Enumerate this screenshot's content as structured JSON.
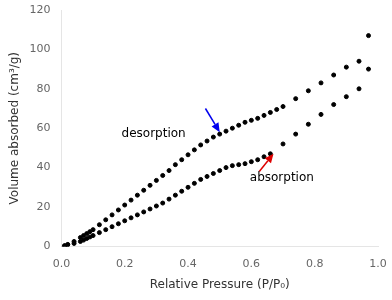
{
  "chart_data": {
    "type": "scatter",
    "x_label": "Relative Pressure (P/P₀)",
    "y_label": "Volume absorbed (cm³/g)",
    "xlim": [
      0.0,
      1.0
    ],
    "ylim": [
      0,
      120
    ],
    "xticks": [
      {
        "value": 0.0,
        "label": "0.0"
      },
      0.2,
      0.4,
      0.6,
      0.8,
      {
        "value": 1.0,
        "label": "1.0"
      }
    ],
    "yticks": [
      0,
      20,
      40,
      60,
      80,
      100,
      120
    ],
    "grid": false,
    "series": [
      {
        "color": "#000000",
        "x": [
          0.01,
          0.02,
          0.04,
          0.06,
          0.07,
          0.08,
          0.09,
          0.1,
          0.12,
          0.14,
          0.16,
          0.18,
          0.2,
          0.22,
          0.24,
          0.26,
          0.28,
          0.3,
          0.32,
          0.34,
          0.36,
          0.38,
          0.4,
          0.42,
          0.44,
          0.46,
          0.48,
          0.5,
          0.52,
          0.54,
          0.56,
          0.58,
          0.6,
          0.62,
          0.64,
          0.66,
          0.7,
          0.74,
          0.78,
          0.82,
          0.86,
          0.9,
          0.94,
          0.97
        ],
        "values": [
          0.3,
          0.8,
          1.5,
          2.5,
          3.2,
          4.0,
          4.8,
          5.5,
          7.0,
          8.5,
          10.0,
          11.5,
          13.0,
          14.5,
          16.0,
          17.5,
          19.0,
          20.5,
          22.0,
          24.0,
          26.0,
          28.0,
          30.0,
          32.0,
          34.0,
          35.5,
          37.0,
          38.5,
          40.0,
          41.0,
          41.5,
          42.0,
          43.0,
          44.0,
          45.5,
          47.0,
          52.0,
          57.0,
          62.0,
          67.0,
          72.0,
          76.0,
          80.0,
          90.0
        ]
      },
      {
        "color": "#000000",
        "x": [
          0.01,
          0.02,
          0.04,
          0.06,
          0.07,
          0.08,
          0.09,
          0.1,
          0.12,
          0.14,
          0.16,
          0.18,
          0.2,
          0.22,
          0.24,
          0.26,
          0.28,
          0.3,
          0.32,
          0.34,
          0.36,
          0.38,
          0.4,
          0.42,
          0.44,
          0.46,
          0.48,
          0.5,
          0.52,
          0.54,
          0.56,
          0.58,
          0.6,
          0.62,
          0.64,
          0.66,
          0.68,
          0.7,
          0.74,
          0.78,
          0.82,
          0.86,
          0.9,
          0.94,
          0.97
        ],
        "values": [
          0.3,
          1.0,
          2.5,
          4.5,
          5.5,
          6.5,
          7.5,
          8.5,
          11.0,
          13.5,
          16.0,
          18.5,
          21.0,
          23.5,
          26.0,
          28.5,
          31.0,
          33.5,
          36.0,
          38.5,
          41.5,
          44.0,
          46.5,
          49.0,
          51.5,
          53.5,
          55.5,
          57.0,
          58.5,
          60.0,
          61.5,
          63.0,
          64.0,
          65.0,
          66.5,
          68.0,
          69.5,
          71.0,
          75.0,
          79.0,
          83.0,
          87.0,
          91.0,
          94.0,
          107.0
        ]
      }
    ],
    "annotations": [
      {
        "text": "desorption",
        "x": 0.19,
        "y": 57,
        "arrow": {
          "from": [
            0.455,
            70
          ],
          "to": [
            0.5,
            58
          ],
          "color": "#0000ee"
        }
      },
      {
        "text": "absorption",
        "x": 0.595,
        "y": 35,
        "arrow": {
          "from": [
            0.625,
            38
          ],
          "to": [
            0.67,
            47
          ],
          "color": "#dd0000"
        }
      }
    ]
  }
}
